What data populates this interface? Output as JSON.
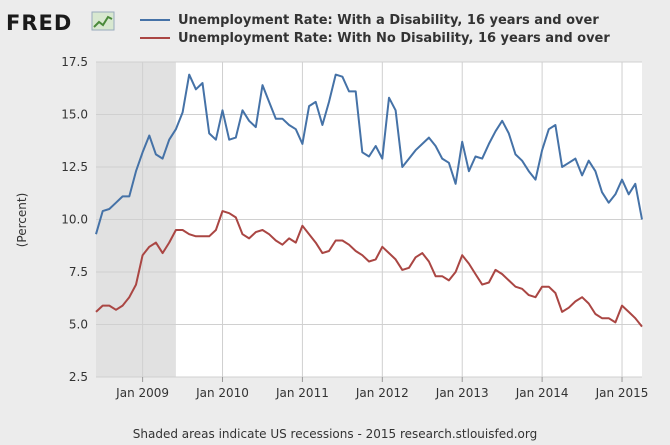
{
  "logo": {
    "text": "FRED"
  },
  "footer": "Shaded areas indicate US recessions - 2015 research.stlouisfed.org",
  "colors": {
    "series1": "#4572a7",
    "series2": "#aa4643",
    "background": "#ececec",
    "plot": "#ffffff",
    "recession": "#e1e1e1",
    "grid": "#d0d0d0"
  },
  "chart_data": {
    "type": "line",
    "ylabel": "(Percent)",
    "ylim": [
      2.5,
      17.5
    ],
    "yticks": [
      2.5,
      5.0,
      7.5,
      10.0,
      12.5,
      15.0,
      17.5
    ],
    "xlim": [
      "2008-06",
      "2015-04"
    ],
    "xticks": [
      {
        "date": "2009-01",
        "label": "Jan 2009"
      },
      {
        "date": "2010-01",
        "label": "Jan 2010"
      },
      {
        "date": "2011-01",
        "label": "Jan 2011"
      },
      {
        "date": "2012-01",
        "label": "Jan 2012"
      },
      {
        "date": "2013-01",
        "label": "Jan 2013"
      },
      {
        "date": "2014-01",
        "label": "Jan 2014"
      },
      {
        "date": "2015-01",
        "label": "Jan 2015"
      }
    ],
    "grid": true,
    "legend_position": "top",
    "recession": {
      "start": "2008-06",
      "end": "2009-06"
    },
    "x": [
      "2008-06",
      "2008-07",
      "2008-08",
      "2008-09",
      "2008-10",
      "2008-11",
      "2008-12",
      "2009-01",
      "2009-02",
      "2009-03",
      "2009-04",
      "2009-05",
      "2009-06",
      "2009-07",
      "2009-08",
      "2009-09",
      "2009-10",
      "2009-11",
      "2009-12",
      "2010-01",
      "2010-02",
      "2010-03",
      "2010-04",
      "2010-05",
      "2010-06",
      "2010-07",
      "2010-08",
      "2010-09",
      "2010-10",
      "2010-11",
      "2010-12",
      "2011-01",
      "2011-02",
      "2011-03",
      "2011-04",
      "2011-05",
      "2011-06",
      "2011-07",
      "2011-08",
      "2011-09",
      "2011-10",
      "2011-11",
      "2011-12",
      "2012-01",
      "2012-02",
      "2012-03",
      "2012-04",
      "2012-05",
      "2012-06",
      "2012-07",
      "2012-08",
      "2012-09",
      "2012-10",
      "2012-11",
      "2012-12",
      "2013-01",
      "2013-02",
      "2013-03",
      "2013-04",
      "2013-05",
      "2013-06",
      "2013-07",
      "2013-08",
      "2013-09",
      "2013-10",
      "2013-11",
      "2013-12",
      "2014-01",
      "2014-02",
      "2014-03",
      "2014-04",
      "2014-05",
      "2014-06",
      "2014-07",
      "2014-08",
      "2014-09",
      "2014-10",
      "2014-11",
      "2014-12",
      "2015-01",
      "2015-02",
      "2015-03",
      "2015-04"
    ],
    "series": [
      {
        "name": "Unemployment Rate: With a Disability, 16 years and over",
        "values": [
          9.3,
          10.4,
          10.5,
          10.8,
          11.1,
          11.1,
          12.3,
          13.2,
          14.0,
          13.1,
          12.9,
          13.8,
          14.3,
          15.1,
          16.9,
          16.2,
          16.5,
          14.1,
          13.8,
          15.2,
          13.8,
          13.9,
          15.2,
          14.7,
          14.4,
          16.4,
          15.6,
          14.8,
          14.8,
          14.5,
          14.3,
          13.6,
          15.4,
          15.6,
          14.5,
          15.6,
          16.9,
          16.8,
          16.1,
          16.1,
          13.2,
          13.0,
          13.5,
          12.9,
          15.8,
          15.2,
          12.5,
          12.9,
          13.3,
          13.6,
          13.9,
          13.5,
          12.9,
          12.7,
          11.7,
          13.7,
          12.3,
          13.0,
          12.9,
          13.6,
          14.2,
          14.7,
          14.1,
          13.1,
          12.8,
          12.3,
          11.9,
          13.3,
          14.3,
          14.5,
          12.5,
          12.7,
          12.9,
          12.1,
          12.8,
          12.3,
          11.3,
          10.8,
          11.2,
          11.9,
          11.2,
          11.7,
          10.0
        ]
      },
      {
        "name": "Unemployment Rate: With No Disability, 16 years and over",
        "values": [
          5.6,
          5.9,
          5.9,
          5.7,
          5.9,
          6.3,
          6.9,
          8.3,
          8.7,
          8.9,
          8.4,
          8.9,
          9.5,
          9.5,
          9.3,
          9.2,
          9.2,
          9.2,
          9.5,
          10.4,
          10.3,
          10.1,
          9.3,
          9.1,
          9.4,
          9.5,
          9.3,
          9.0,
          8.8,
          9.1,
          8.9,
          9.7,
          9.3,
          8.9,
          8.4,
          8.5,
          9.0,
          9.0,
          8.8,
          8.5,
          8.3,
          8.0,
          8.1,
          8.7,
          8.4,
          8.1,
          7.6,
          7.7,
          8.2,
          8.4,
          8.0,
          7.3,
          7.3,
          7.1,
          7.5,
          8.3,
          7.9,
          7.4,
          6.9,
          7.0,
          7.6,
          7.4,
          7.1,
          6.8,
          6.7,
          6.4,
          6.3,
          6.8,
          6.8,
          6.5,
          5.6,
          5.8,
          6.1,
          6.3,
          6.0,
          5.5,
          5.3,
          5.3,
          5.1,
          5.9,
          5.6,
          5.3,
          4.9
        ]
      }
    ]
  }
}
